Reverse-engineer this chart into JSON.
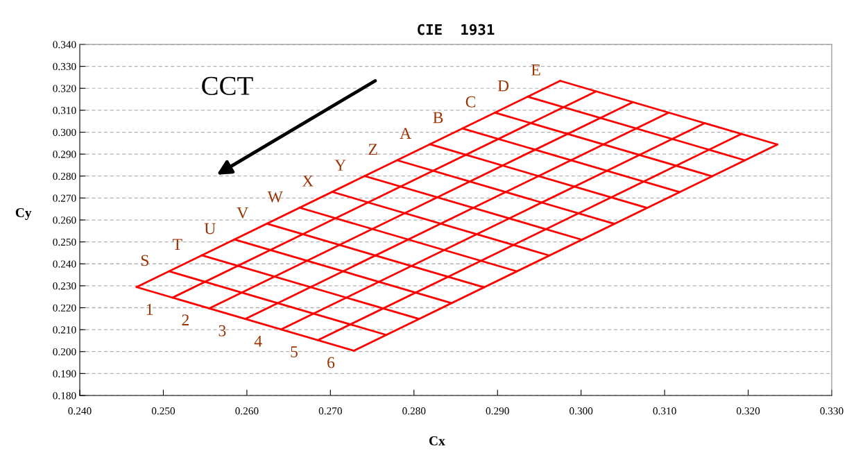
{
  "chart_data": {
    "type": "line",
    "title": "CIE  1931",
    "xlabel": "Cx",
    "ylabel": "Cy",
    "xlim": [
      0.24,
      0.33
    ],
    "ylim": [
      0.18,
      0.34
    ],
    "xticks": [
      {
        "value": 0.24,
        "label": "0.240"
      },
      {
        "value": 0.25,
        "label": "0.250"
      },
      {
        "value": 0.26,
        "label": "0.260"
      },
      {
        "value": 0.27,
        "label": "0.270"
      },
      {
        "value": 0.28,
        "label": "0.280"
      },
      {
        "value": 0.29,
        "label": "0.290"
      },
      {
        "value": 0.3,
        "label": "0.300"
      },
      {
        "value": 0.31,
        "label": "0.310"
      },
      {
        "value": 0.32,
        "label": "0.320"
      },
      {
        "value": 0.33,
        "label": "0.330"
      }
    ],
    "yticks": [
      {
        "value": 0.18,
        "label": "0.180"
      },
      {
        "value": 0.19,
        "label": "0.190"
      },
      {
        "value": 0.2,
        "label": "0.200"
      },
      {
        "value": 0.21,
        "label": "0.210"
      },
      {
        "value": 0.22,
        "label": "0.220"
      },
      {
        "value": 0.23,
        "label": "0.230"
      },
      {
        "value": 0.24,
        "label": "0.240"
      },
      {
        "value": 0.25,
        "label": "0.250"
      },
      {
        "value": 0.26,
        "label": "0.260"
      },
      {
        "value": 0.27,
        "label": "0.270"
      },
      {
        "value": 0.28,
        "label": "0.280"
      },
      {
        "value": 0.29,
        "label": "0.290"
      },
      {
        "value": 0.3,
        "label": "0.300"
      },
      {
        "value": 0.31,
        "label": "0.310"
      },
      {
        "value": 0.32,
        "label": "0.320"
      },
      {
        "value": 0.33,
        "label": "0.330"
      },
      {
        "value": 0.34,
        "label": "0.340"
      }
    ],
    "grid": "y",
    "marker": "none",
    "line_style": "solid",
    "series": [
      {
        "color": "#ff0000",
        "x": [
          0.2468,
          0.2728
        ],
        "values": [
          0.2294,
          0.2004
        ]
      },
      {
        "color": "#ff0000",
        "x": [
          0.2507,
          0.2767
        ],
        "values": [
          0.2366,
          0.2076
        ]
      },
      {
        "color": "#ff0000",
        "x": [
          0.2546,
          0.2806
        ],
        "values": [
          0.2439,
          0.2149
        ]
      },
      {
        "color": "#ff0000",
        "x": [
          0.2585,
          0.2845
        ],
        "values": [
          0.2511,
          0.2221
        ]
      },
      {
        "color": "#ff0000",
        "x": [
          0.2624,
          0.2884
        ],
        "values": [
          0.2583,
          0.2293
        ]
      },
      {
        "color": "#ff0000",
        "x": [
          0.2663,
          0.2923
        ],
        "values": [
          0.2656,
          0.2366
        ]
      },
      {
        "color": "#ff0000",
        "x": [
          0.2702,
          0.2962
        ],
        "values": [
          0.2728,
          0.2438
        ]
      },
      {
        "color": "#ff0000",
        "x": [
          0.2741,
          0.3001
        ],
        "values": [
          0.28,
          0.251
        ]
      },
      {
        "color": "#ff0000",
        "x": [
          0.278,
          0.304
        ],
        "values": [
          0.2872,
          0.2582
        ]
      },
      {
        "color": "#ff0000",
        "x": [
          0.2819,
          0.3079
        ],
        "values": [
          0.2945,
          0.2655
        ]
      },
      {
        "color": "#ff0000",
        "x": [
          0.2858,
          0.3118
        ],
        "values": [
          0.3017,
          0.2727
        ]
      },
      {
        "color": "#ff0000",
        "x": [
          0.2897,
          0.3157
        ],
        "values": [
          0.3089,
          0.2799
        ]
      },
      {
        "color": "#ff0000",
        "x": [
          0.2936,
          0.3196
        ],
        "values": [
          0.3162,
          0.2872
        ]
      },
      {
        "color": "#ff0000",
        "x": [
          0.2975,
          0.3235
        ],
        "values": [
          0.3234,
          0.2944
        ]
      },
      {
        "color": "#ff0000",
        "x": [
          0.2468,
          0.2975
        ],
        "values": [
          0.2294,
          0.3234
        ]
      },
      {
        "color": "#ff0000",
        "x": [
          0.2511,
          0.3018
        ],
        "values": [
          0.2246,
          0.3186
        ]
      },
      {
        "color": "#ff0000",
        "x": [
          0.2555,
          0.3062
        ],
        "values": [
          0.2197,
          0.3137
        ]
      },
      {
        "color": "#ff0000",
        "x": [
          0.2598,
          0.3105
        ],
        "values": [
          0.2149,
          0.3089
        ]
      },
      {
        "color": "#ff0000",
        "x": [
          0.2641,
          0.3148
        ],
        "values": [
          0.2101,
          0.3041
        ]
      },
      {
        "color": "#ff0000",
        "x": [
          0.2685,
          0.3192
        ],
        "values": [
          0.2052,
          0.2992
        ]
      },
      {
        "color": "#ff0000",
        "x": [
          0.2728,
          0.3235
        ],
        "values": [
          0.2004,
          0.2944
        ]
      }
    ],
    "annotations": [
      "CCT",
      {
        "text": "S",
        "x": 0.2488,
        "y": 0.233
      },
      {
        "text": "T",
        "x": 0.2527,
        "y": 0.2403
      },
      {
        "text": "U",
        "x": 0.2566,
        "y": 0.2475
      },
      {
        "text": "V",
        "x": 0.2605,
        "y": 0.2547
      },
      {
        "text": "W",
        "x": 0.2644,
        "y": 0.262
      },
      {
        "text": "X",
        "x": 0.2683,
        "y": 0.2692
      },
      {
        "text": "Y",
        "x": 0.2722,
        "y": 0.2764
      },
      {
        "text": "Z",
        "x": 0.2761,
        "y": 0.2836
      },
      {
        "text": "A",
        "x": 0.28,
        "y": 0.2909
      },
      {
        "text": "B",
        "x": 0.2839,
        "y": 0.2981
      },
      {
        "text": "C",
        "x": 0.2878,
        "y": 0.3053
      },
      {
        "text": "D",
        "x": 0.2917,
        "y": 0.3126
      },
      {
        "text": "E",
        "x": 0.2956,
        "y": 0.3198
      },
      {
        "text": "1",
        "x": 0.249,
        "y": 0.227
      },
      {
        "text": "2",
        "x": 0.2533,
        "y": 0.2222
      },
      {
        "text": "3",
        "x": 0.2577,
        "y": 0.2173
      },
      {
        "text": "4",
        "x": 0.262,
        "y": 0.2125
      },
      {
        "text": "5",
        "x": 0.2663,
        "y": 0.2077
      },
      {
        "text": "6",
        "x": 0.2707,
        "y": 0.2028
      }
    ]
  }
}
